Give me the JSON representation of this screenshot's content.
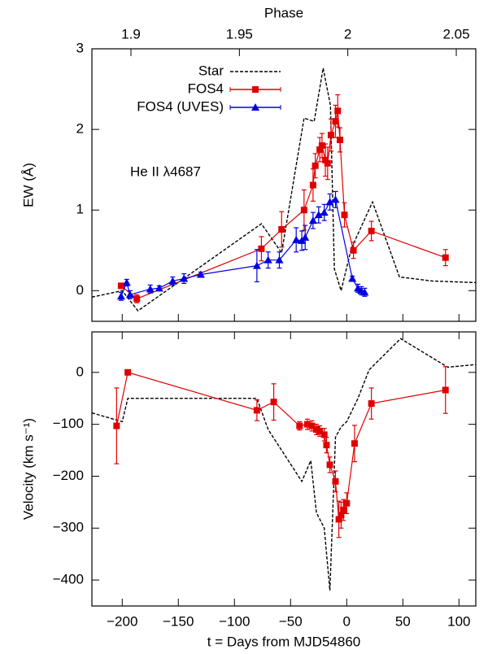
{
  "chart_data": [
    {
      "type": "line",
      "ylabel": "EW (Å)",
      "x2label": "Phase",
      "annotation": "He II λ4687",
      "legend": "top-center",
      "xlim": [
        -227,
        115
      ],
      "xticks": [
        -200,
        -150,
        -100,
        -50,
        0,
        50,
        100
      ],
      "x2lim": [
        1.882,
        2.059
      ],
      "x2ticks": [
        1.9,
        1.95,
        2,
        2.05
      ],
      "ylim": [
        -0.38,
        3
      ],
      "yticks": [
        0,
        1,
        2,
        3
      ],
      "series": [
        {
          "name": "Star",
          "color": "#000000",
          "style": "dashed",
          "x": [
            -227,
            -200,
            -186,
            -76,
            -58,
            -38,
            -29,
            -21,
            -14.5,
            -11,
            -5,
            4,
            23,
            47,
            76,
            115
          ],
          "values": [
            -0.08,
            0,
            -0.25,
            0.83,
            0.47,
            2.14,
            2.1,
            2.76,
            2.3,
            0.27,
            0,
            0.52,
            1.1,
            0.17,
            0.12,
            0.1
          ]
        },
        {
          "name": "FOS4",
          "color": "#e00000",
          "style": "solid",
          "marker": "square",
          "x": [
            -201,
            -187,
            -76,
            -58,
            -38,
            -30,
            -28,
            -24,
            -22,
            -19,
            -17,
            -14,
            -10,
            -8,
            -6,
            -2,
            6,
            22,
            88
          ],
          "values": [
            0.06,
            -0.1,
            0.52,
            0.76,
            1.0,
            1.31,
            1.55,
            1.75,
            1.8,
            1.62,
            1.58,
            1.93,
            2.1,
            2.23,
            1.87,
            0.94,
            0.5,
            0.74,
            0.41
          ],
          "errors": [
            0.03,
            0.05,
            0.15,
            0.22,
            0.25,
            0.2,
            0.15,
            0.15,
            0.15,
            0.2,
            0.2,
            0.2,
            0.2,
            0.2,
            0.15,
            0.15,
            0.1,
            0.12,
            0.1
          ]
        },
        {
          "name": "FOS4 (UVES)",
          "color": "#0000e0",
          "style": "solid",
          "marker": "triangle",
          "x": [
            -201,
            -196,
            -193,
            -175,
            -167,
            -155,
            -145,
            -130,
            -80,
            -70,
            -60,
            -45,
            -40,
            -37,
            -30,
            -25,
            -20,
            -15,
            -10,
            5,
            10,
            13,
            16
          ],
          "values": [
            -0.07,
            0.1,
            -0.05,
            0.02,
            0.03,
            0.12,
            0.15,
            0.2,
            0.31,
            0.38,
            0.38,
            0.63,
            0.62,
            0.66,
            0.87,
            0.94,
            0.97,
            1.1,
            1.13,
            0.15,
            0.03,
            0.0,
            -0.02
          ],
          "errors": [
            0.05,
            0.04,
            0.05,
            0.05,
            0.03,
            0.05,
            0.06,
            0.03,
            0.2,
            0.1,
            0.1,
            0.15,
            0.12,
            0.15,
            0.1,
            0.1,
            0.1,
            0.1,
            0.1,
            0.03,
            0.05,
            0.05,
            0.05
          ]
        }
      ]
    },
    {
      "type": "line",
      "ylabel": "Velocity (km s⁻¹)",
      "xlabel": "t = Days from MJD54860",
      "xlim": [
        -227,
        115
      ],
      "xticks": [
        {
          "value": -200,
          "label": "−200"
        },
        {
          "value": -150,
          "label": "−150"
        },
        {
          "value": -100,
          "label": "−100"
        },
        {
          "value": -50,
          "label": "−50"
        },
        0,
        50,
        100
      ],
      "ylim": [
        -450,
        78
      ],
      "yticks": [
        {
          "value": -400,
          "label": "−400"
        },
        {
          "value": -300,
          "label": "−300"
        },
        {
          "value": -200,
          "label": "−200"
        },
        {
          "value": -100,
          "label": "−100"
        },
        0
      ],
      "series": [
        {
          "color": "#000000",
          "style": "dashed",
          "x": [
            -227,
            -200,
            -195,
            -80,
            -70,
            -40,
            -32,
            -27,
            -20,
            -15,
            -10,
            -5,
            0,
            10,
            20,
            48,
            90,
            115
          ],
          "values": [
            -78,
            -95,
            -50,
            -50,
            -110,
            -210,
            -170,
            -270,
            -300,
            -420,
            -125,
            -105,
            -95,
            -50,
            5,
            65,
            10,
            15
          ]
        },
        {
          "color": "#e00000",
          "style": "solid",
          "marker": "square",
          "x": [
            -205,
            -195,
            -80,
            -65,
            -42,
            -35,
            -31,
            -27,
            -24,
            -20,
            -18,
            -15,
            -10,
            -7,
            -5,
            -3,
            0,
            7,
            22,
            88
          ],
          "values": [
            -103,
            0,
            -73,
            -57,
            -103,
            -100,
            -103,
            -110,
            -113,
            -120,
            -140,
            -178,
            -210,
            -283,
            -275,
            -265,
            -252,
            -137,
            -60,
            -34
          ],
          "errors": [
            73,
            3,
            20,
            35,
            8,
            10,
            10,
            10,
            10,
            12,
            15,
            15,
            20,
            35,
            25,
            20,
            20,
            35,
            30,
            45
          ]
        }
      ]
    }
  ]
}
